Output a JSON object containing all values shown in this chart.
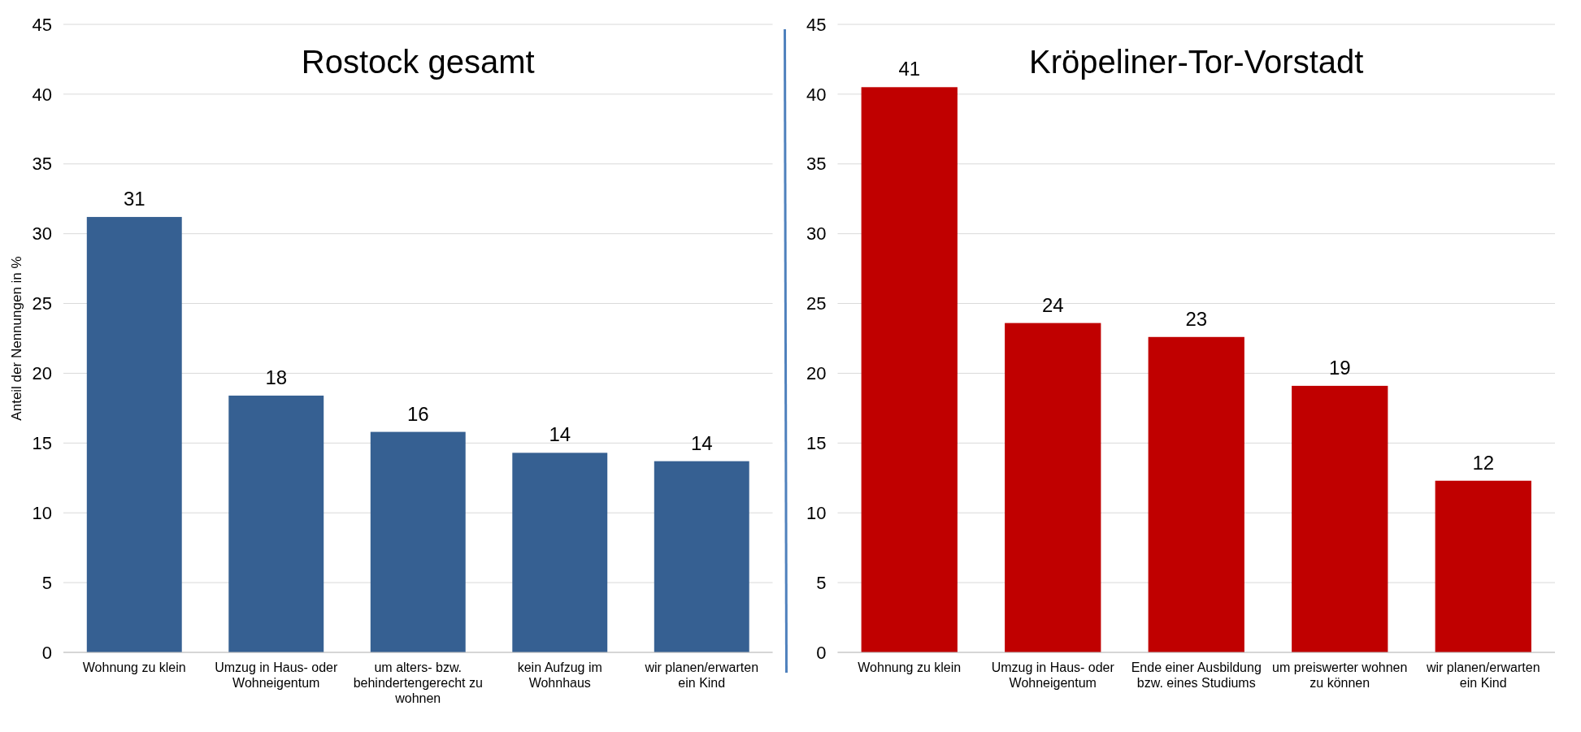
{
  "chart_data": [
    {
      "type": "bar",
      "title": "Rostock gesamt",
      "ylabel": "Anteil der Nennungen in %",
      "categories": [
        "Wohnung zu klein",
        "Umzug in Haus- oder Wohneigentum",
        "um alters- bzw. behindertengerecht zu wohnen",
        "kein Aufzug im Wohnhaus",
        "wir planen/erwarten ein Kind"
      ],
      "values": [
        31.2,
        18.4,
        15.8,
        14.3,
        13.7
      ],
      "value_labels": [
        "31",
        "18",
        "16",
        "14",
        "14"
      ],
      "color": "#366092",
      "ylim": [
        0,
        45
      ],
      "yticks": [
        0,
        5,
        10,
        15,
        20,
        25,
        30,
        35,
        40,
        45
      ],
      "grid": "y"
    },
    {
      "type": "bar",
      "title": "Kröpeliner-Tor-Vorstadt",
      "categories": [
        "Wohnung zu klein",
        "Umzug in Haus- oder Wohneigentum",
        "Ende einer Ausbildung bzw. eines Studiums",
        "um preiswerter wohnen zu können",
        "wir planen/erwarten ein Kind"
      ],
      "values": [
        40.5,
        23.6,
        22.6,
        19.1,
        12.3
      ],
      "value_labels": [
        "41",
        "24",
        "23",
        "19",
        "12"
      ],
      "color": "#c00000",
      "ylim": [
        0,
        45
      ],
      "yticks": [
        0,
        5,
        10,
        15,
        20,
        25,
        30,
        35,
        40,
        45
      ],
      "grid": "y"
    }
  ]
}
